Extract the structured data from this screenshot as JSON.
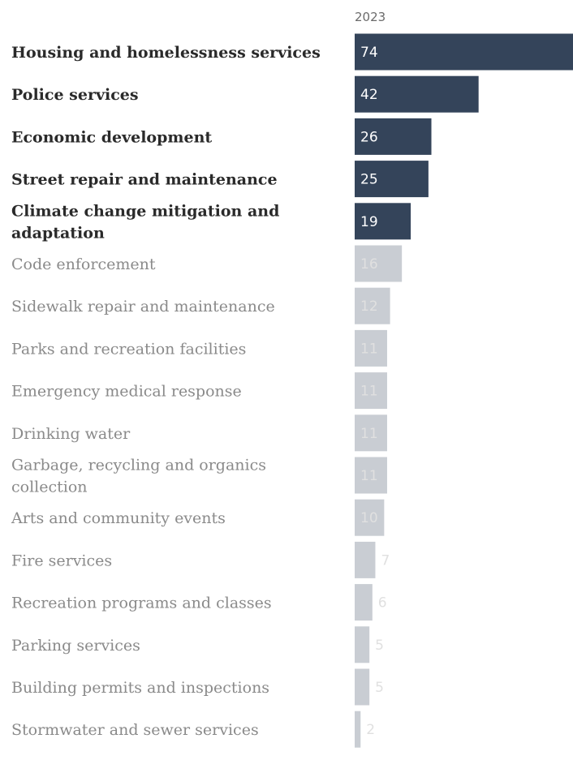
{
  "chart_data": {
    "type": "bar",
    "orientation": "horizontal",
    "column_header": "2023",
    "highlight_color": "#34445a",
    "muted_color": "#c9cdd3",
    "highlight_label_color": "#ffffff",
    "muted_label_color": "#e0e0e0",
    "xlim": [
      0,
      74
    ],
    "categories": [
      {
        "label": [
          "Housing and homelessness services"
        ],
        "value": 74,
        "highlight": true
      },
      {
        "label": [
          "Police services"
        ],
        "value": 42,
        "highlight": true
      },
      {
        "label": [
          "Economic development"
        ],
        "value": 26,
        "highlight": true
      },
      {
        "label": [
          "Street repair and maintenance"
        ],
        "value": 25,
        "highlight": true
      },
      {
        "label": [
          "Climate change mitigation and",
          "adaptation"
        ],
        "value": 19,
        "highlight": true
      },
      {
        "label": [
          "Code enforcement"
        ],
        "value": 16,
        "highlight": false
      },
      {
        "label": [
          "Sidewalk repair and maintenance"
        ],
        "value": 12,
        "highlight": false
      },
      {
        "label": [
          "Parks and recreation facilities"
        ],
        "value": 11,
        "highlight": false
      },
      {
        "label": [
          "Emergency medical response"
        ],
        "value": 11,
        "highlight": false
      },
      {
        "label": [
          "Drinking water"
        ],
        "value": 11,
        "highlight": false
      },
      {
        "label": [
          "Garbage, recycling and organics",
          "collection"
        ],
        "value": 11,
        "highlight": false
      },
      {
        "label": [
          "Arts and community events"
        ],
        "value": 10,
        "highlight": false
      },
      {
        "label": [
          "Fire services"
        ],
        "value": 7,
        "highlight": false
      },
      {
        "label": [
          "Recreation programs and classes"
        ],
        "value": 6,
        "highlight": false
      },
      {
        "label": [
          "Parking services"
        ],
        "value": 5,
        "highlight": false
      },
      {
        "label": [
          "Building permits and inspections"
        ],
        "value": 5,
        "highlight": false
      },
      {
        "label": [
          "Stormwater and sewer services"
        ],
        "value": 2,
        "highlight": false
      }
    ]
  }
}
